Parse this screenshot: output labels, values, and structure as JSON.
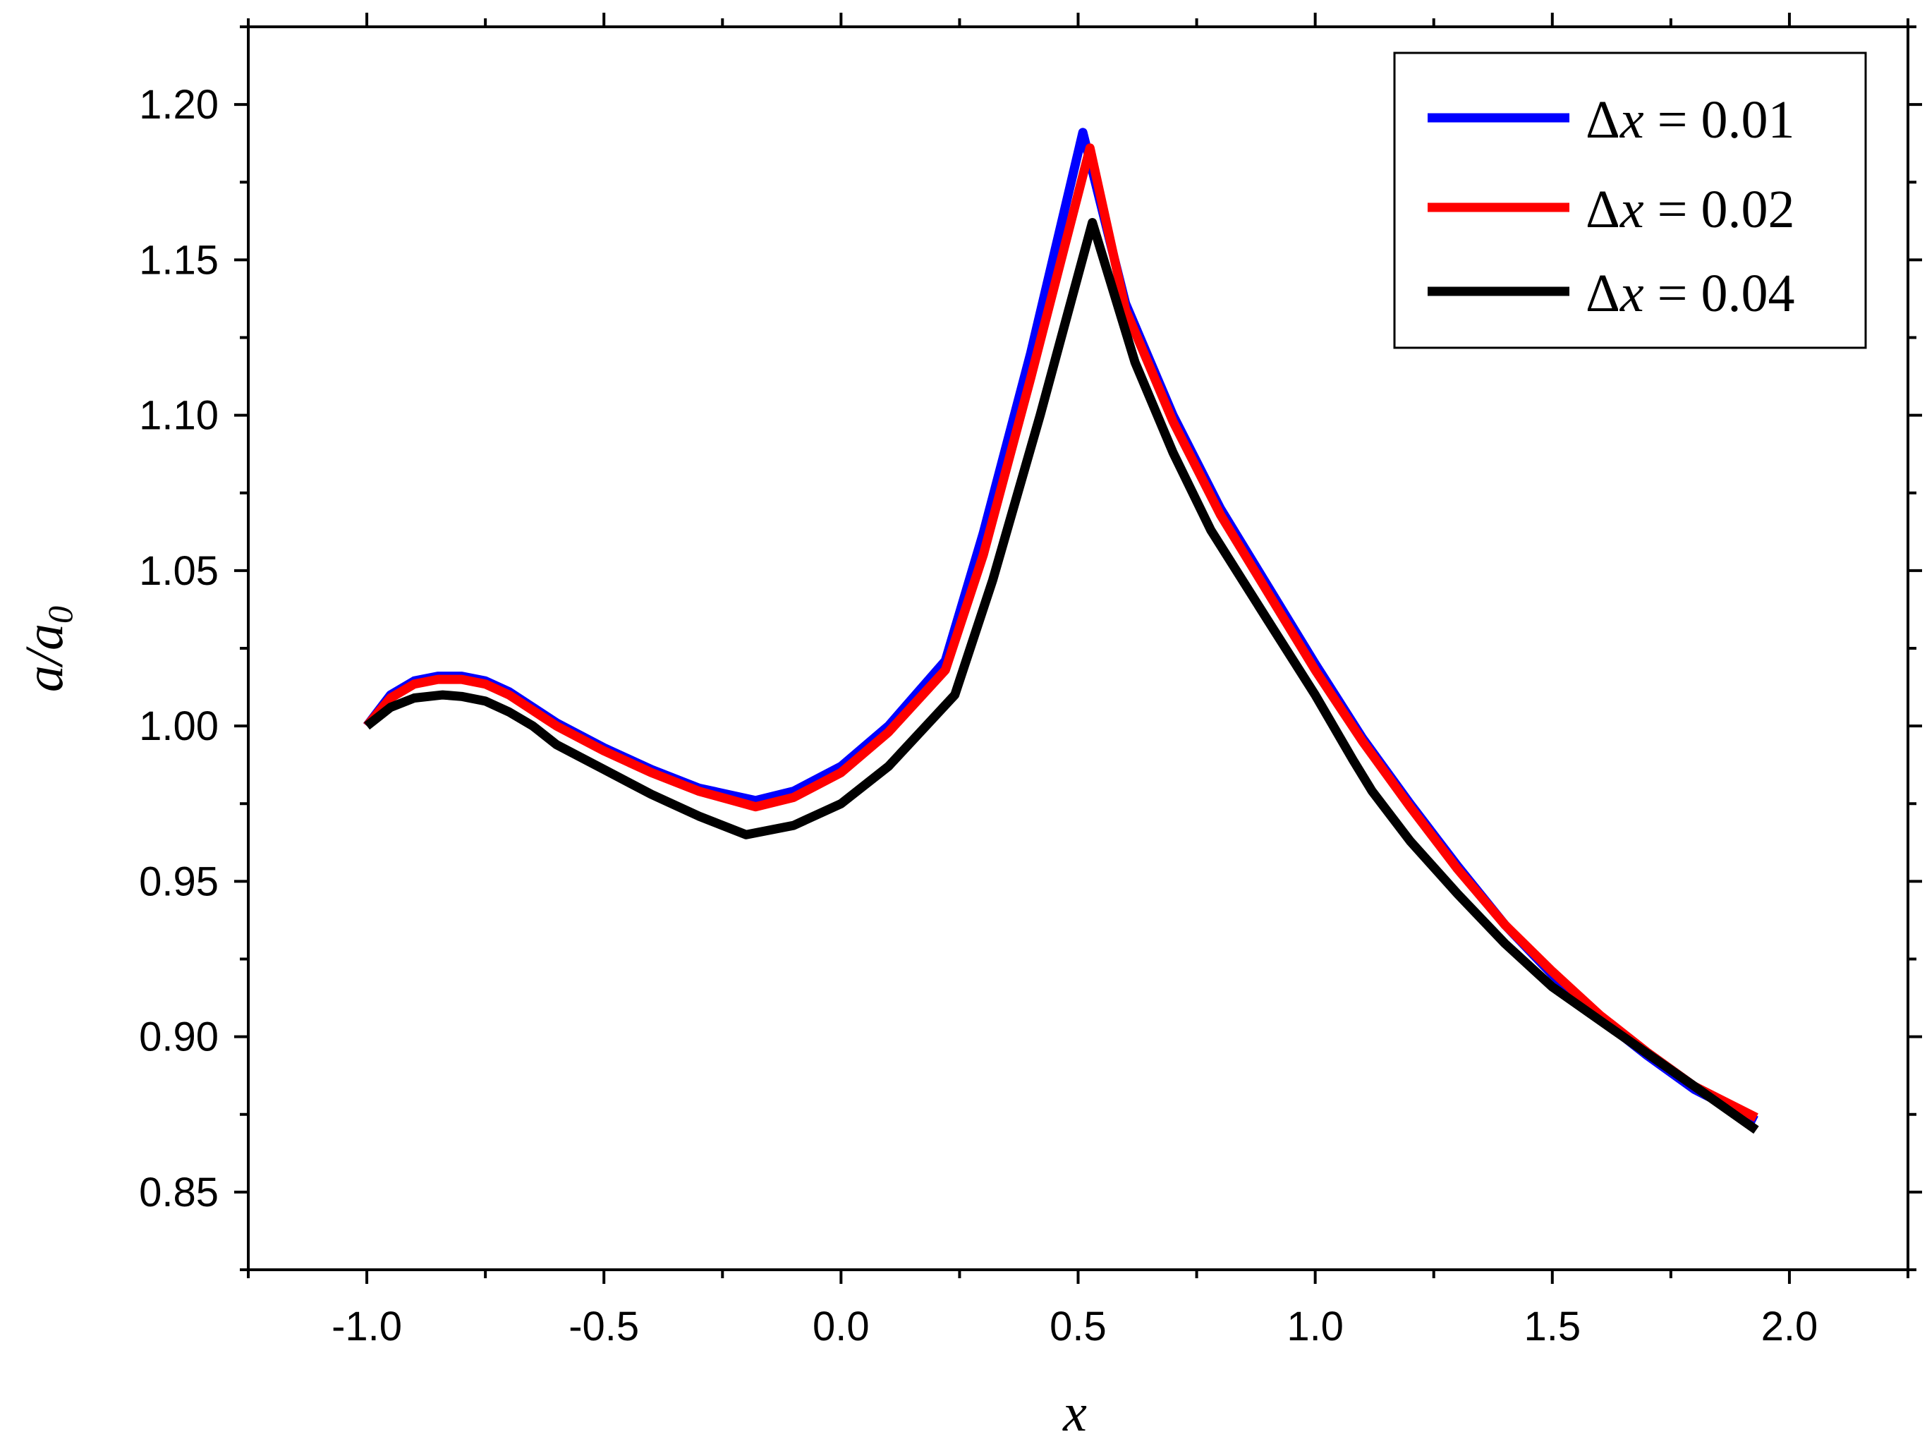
{
  "chart_data": {
    "type": "line",
    "xlabel": "x",
    "ylabel": {
      "main": "a/a",
      "subscript": "0"
    },
    "xlim": [
      -1.25,
      2.25
    ],
    "ylim": [
      0.825,
      1.225
    ],
    "xticks": [
      "-1.0",
      "-0.5",
      "0.0",
      "0.5",
      "1.0",
      "1.5",
      "2.0"
    ],
    "yticks": [
      "0.85",
      "0.90",
      "0.95",
      "1.00",
      "1.05",
      "1.10",
      "1.15",
      "1.20"
    ],
    "legend_position": "top-right",
    "series": [
      {
        "name": "Δx = 0.01",
        "color": "#0000ff",
        "x": [
          -1.0,
          -0.95,
          -0.9,
          -0.85,
          -0.8,
          -0.75,
          -0.7,
          -0.65,
          -0.6,
          -0.5,
          -0.4,
          -0.3,
          -0.18,
          -0.1,
          0.0,
          0.1,
          0.22,
          0.3,
          0.4,
          0.51,
          0.6,
          0.7,
          0.8,
          0.9,
          1.0,
          1.1,
          1.2,
          1.3,
          1.4,
          1.5,
          1.6,
          1.7,
          1.8,
          1.93
        ],
        "y": [
          1.0,
          1.01,
          1.0145,
          1.016,
          1.016,
          1.0145,
          1.011,
          1.006,
          1.001,
          0.993,
          0.986,
          0.98,
          0.976,
          0.979,
          0.987,
          1.0,
          1.021,
          1.062,
          1.12,
          1.191,
          1.136,
          1.1,
          1.07,
          1.045,
          1.02,
          0.996,
          0.975,
          0.955,
          0.936,
          0.92,
          0.906,
          0.894,
          0.883,
          0.873
        ]
      },
      {
        "name": "Δx = 0.02",
        "color": "#ff0000",
        "x": [
          -1.0,
          -0.95,
          -0.9,
          -0.85,
          -0.8,
          -0.75,
          -0.7,
          -0.65,
          -0.6,
          -0.5,
          -0.4,
          -0.3,
          -0.18,
          -0.1,
          0.0,
          0.1,
          0.22,
          0.3,
          0.4,
          0.525,
          0.6,
          0.7,
          0.8,
          0.9,
          1.0,
          1.1,
          1.2,
          1.3,
          1.4,
          1.5,
          1.6,
          1.7,
          1.8,
          1.93
        ],
        "y": [
          1.0,
          1.009,
          1.0135,
          1.015,
          1.015,
          1.0135,
          1.01,
          1.005,
          1.0,
          0.992,
          0.985,
          0.979,
          0.974,
          0.977,
          0.985,
          0.998,
          1.018,
          1.055,
          1.112,
          1.186,
          1.134,
          1.098,
          1.068,
          1.043,
          1.018,
          0.995,
          0.974,
          0.954,
          0.936,
          0.921,
          0.907,
          0.895,
          0.884,
          0.874
        ]
      },
      {
        "name": "Δx = 0.04",
        "color": "#000000",
        "x": [
          -1.0,
          -0.95,
          -0.9,
          -0.84,
          -0.8,
          -0.75,
          -0.7,
          -0.65,
          -0.6,
          -0.5,
          -0.4,
          -0.3,
          -0.2,
          -0.1,
          0.0,
          0.1,
          0.24,
          0.32,
          0.42,
          0.53,
          0.62,
          0.7,
          0.78,
          0.9,
          1.0,
          1.08,
          1.12,
          1.2,
          1.3,
          1.4,
          1.5,
          1.64,
          1.8,
          1.93
        ],
        "y": [
          1.0,
          1.006,
          1.009,
          1.01,
          1.0095,
          1.008,
          1.0045,
          1.0,
          0.994,
          0.986,
          0.978,
          0.971,
          0.965,
          0.968,
          0.975,
          0.987,
          1.01,
          1.047,
          1.1,
          1.162,
          1.117,
          1.088,
          1.063,
          1.034,
          1.01,
          0.989,
          0.979,
          0.963,
          0.946,
          0.93,
          0.916,
          0.901,
          0.884,
          0.87
        ]
      }
    ]
  }
}
